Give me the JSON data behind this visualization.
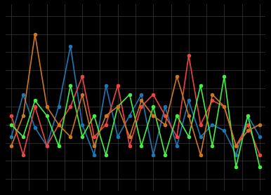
{
  "background_color": "#000000",
  "grid_color": "#3a3a3a",
  "figsize": [
    3.86,
    2.78
  ],
  "dpi": 100,
  "series": [
    {
      "color": "#1f77b4",
      "marker": "o",
      "markersize": 4,
      "linewidth": 1.2,
      "y": [
        3.8,
        5.2,
        4.1,
        3.5,
        4.8,
        6.8,
        4.2,
        3.2,
        5.5,
        3.8,
        4.5,
        5.2,
        3.2,
        4.8,
        3.5,
        5.0,
        3.8,
        4.2,
        4.0,
        3.2,
        4.5,
        3.8
      ]
    },
    {
      "color": "#ee4444",
      "marker": "o",
      "markersize": 4,
      "linewidth": 1.2,
      "y": [
        4.5,
        3.2,
        4.8,
        3.5,
        4.2,
        4.8,
        5.8,
        3.8,
        4.2,
        5.5,
        3.5,
        4.8,
        5.2,
        4.5,
        3.8,
        6.5,
        4.2,
        5.0,
        4.8,
        3.5,
        4.2,
        3.2
      ]
    },
    {
      "color": "#44ee44",
      "marker": "o",
      "markersize": 4,
      "linewidth": 1.2,
      "y": [
        4.2,
        3.8,
        5.0,
        4.5,
        3.5,
        5.5,
        3.8,
        4.5,
        3.2,
        4.8,
        5.2,
        3.5,
        4.8,
        3.2,
        4.5,
        3.8,
        5.5,
        3.5,
        5.8,
        2.8,
        4.5,
        2.8
      ]
    },
    {
      "color": "#cc7722",
      "marker": "o",
      "markersize": 4,
      "linewidth": 1.2,
      "y": [
        3.5,
        4.5,
        7.2,
        4.8,
        4.2,
        3.8,
        5.2,
        3.5,
        4.5,
        4.8,
        3.8,
        5.0,
        4.5,
        4.2,
        5.8,
        4.5,
        3.2,
        5.2,
        4.8,
        3.5,
        4.0,
        4.2
      ]
    }
  ],
  "xlim": [
    -0.5,
    21.5
  ],
  "ylim": [
    2.0,
    8.2
  ],
  "n_xgrid": 14,
  "n_ygrid": 10
}
